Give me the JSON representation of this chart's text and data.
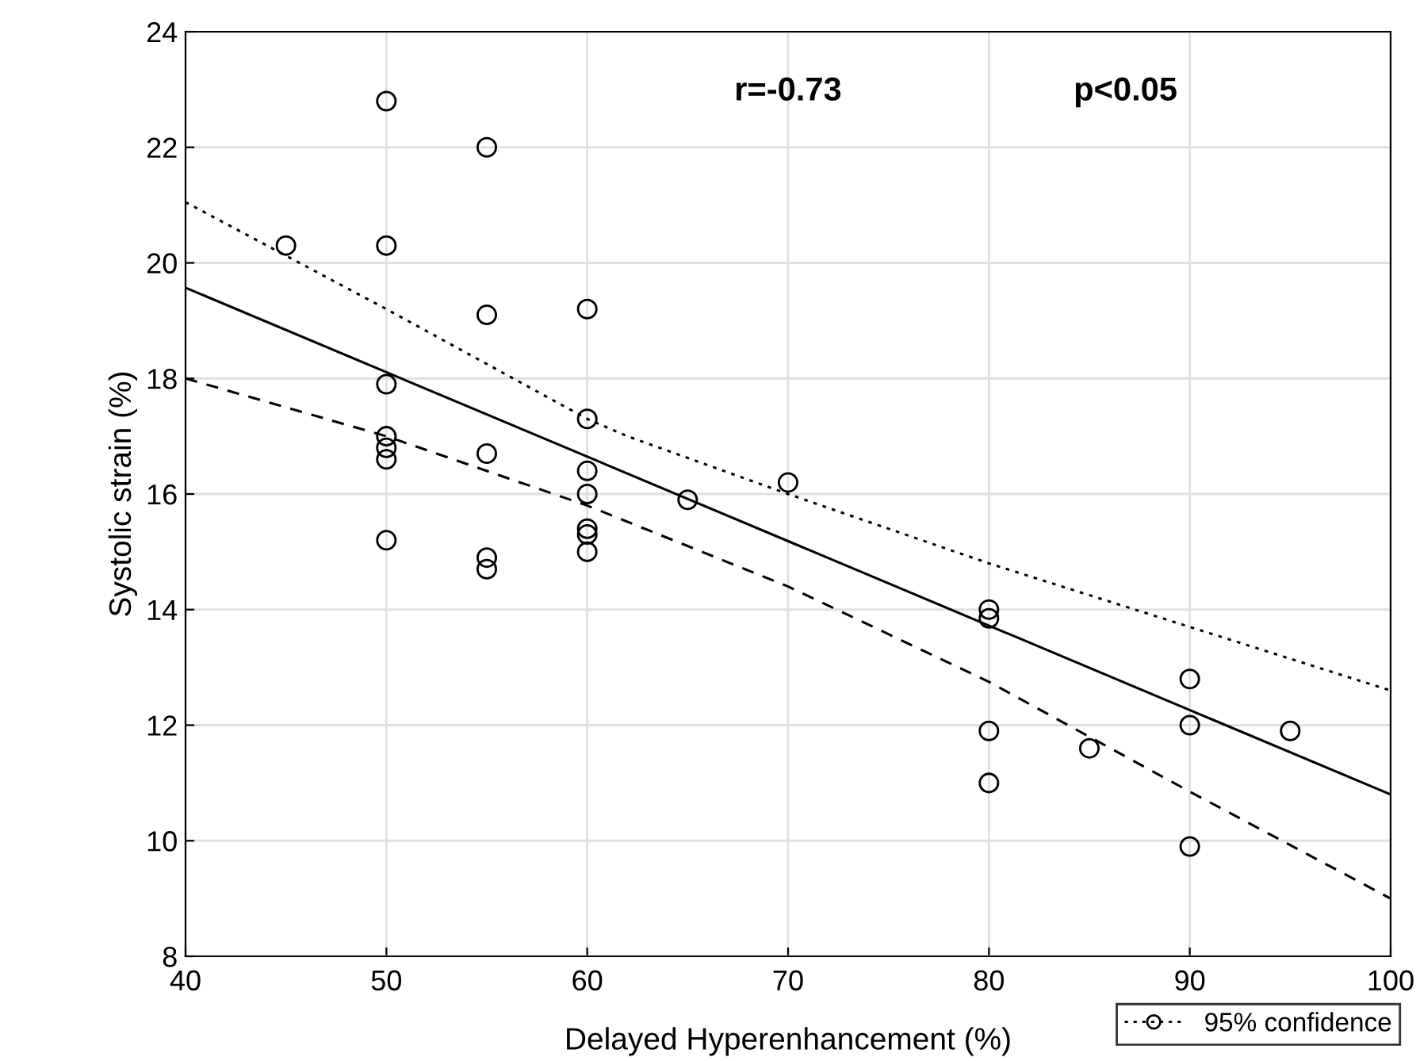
{
  "chart_data": {
    "type": "scatter",
    "xlabel": "Delayed Hyperenhancement (%)",
    "ylabel": "Systolic strain (%)",
    "xlim": [
      40,
      100
    ],
    "xticks": [
      40,
      50,
      60,
      70,
      80,
      90,
      100
    ],
    "ylim": [
      8,
      24
    ],
    "yticks": [
      8,
      10,
      12,
      14,
      16,
      18,
      20,
      22,
      24
    ],
    "grid": true,
    "legend": "bottom right",
    "annotations": [
      "r=-0.73",
      "p<0.05"
    ],
    "series": [
      {
        "marker": "circle",
        "color": "#000000",
        "x": [
          45,
          50,
          50,
          50,
          50,
          50,
          50,
          50,
          55,
          55,
          55,
          55,
          55,
          60,
          60,
          60,
          60,
          60,
          60,
          60,
          65,
          70,
          80,
          80,
          80,
          80,
          85,
          90,
          90,
          90,
          95
        ],
        "values": [
          20.3,
          22.8,
          20.3,
          17.9,
          17.0,
          16.8,
          16.6,
          15.2,
          22.0,
          19.1,
          16.7,
          14.9,
          14.7,
          19.2,
          17.3,
          16.4,
          16.0,
          15.4,
          15.3,
          15.0,
          15.9,
          16.2,
          14.0,
          13.85,
          11.9,
          11.0,
          11.6,
          12.8,
          12.0,
          9.9,
          11.9
        ]
      },
      {
        "type": "line",
        "line_style": "solid",
        "color": "#000000",
        "x": [
          40,
          100
        ],
        "values": [
          19.57,
          10.8
        ]
      },
      {
        "type": "line",
        "name": "95% confidence",
        "line_style": "dotted",
        "color": "#000000",
        "x": [
          40,
          50,
          60,
          62,
          70,
          80,
          90,
          100
        ],
        "values": [
          21.05,
          19.2,
          17.3,
          17.0,
          16.0,
          14.8,
          13.7,
          12.6
        ]
      },
      {
        "type": "line",
        "line_style": "dashed",
        "color": "#000000",
        "x": [
          40,
          50,
          60,
          70,
          80,
          90,
          100
        ],
        "values": [
          18.0,
          17.0,
          15.8,
          14.4,
          12.75,
          10.85,
          9.0
        ]
      }
    ]
  }
}
